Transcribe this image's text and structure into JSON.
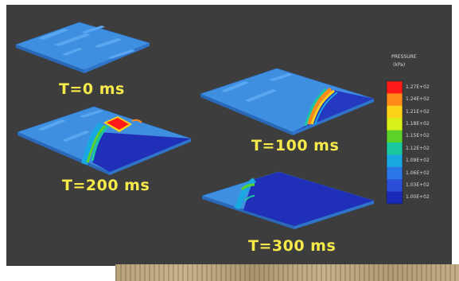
{
  "snapshots": [
    {
      "label": "T=0 ms"
    },
    {
      "label": "T=100 ms"
    },
    {
      "label": "T=200 ms"
    },
    {
      "label": "T=300 ms"
    }
  ],
  "legend": {
    "title": "PRESSURE",
    "unit": "(kPa)",
    "values": [
      "1.27E+02",
      "1.24E+02",
      "1.21E+02",
      "1.18E+02",
      "1.15E+02",
      "1.12E+02",
      "1.09E+02",
      "1.06E+02",
      "1.03E+02",
      "1.00E+02"
    ],
    "colors": [
      "#ff1a1a",
      "#ff8a1a",
      "#ffd21a",
      "#d8f01a",
      "#5ad22a",
      "#1ac8a0",
      "#1aa8e0",
      "#2a78e8",
      "#2a4ed8",
      "#1a2ab8"
    ]
  },
  "colors": {
    "background": "#3d3d3d",
    "label_text": "#f6e94a",
    "base_plate": "#3f8fe0",
    "low_pressure": "#1f2fb8"
  }
}
